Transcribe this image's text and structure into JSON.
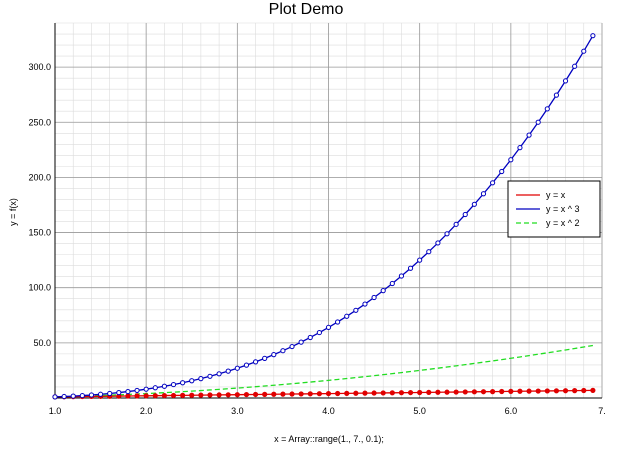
{
  "chart_data": {
    "type": "line",
    "title": "Plot Demo",
    "xlabel": "x = Array::range(1., 7., 0.1);",
    "ylabel": "y = f(x)",
    "xlim": [
      1.0,
      7.0
    ],
    "ylim": [
      0,
      340
    ],
    "x_ticks": [
      1,
      2,
      3,
      4,
      5,
      6,
      7
    ],
    "x_tick_labels": [
      "1.0",
      "2.0",
      "3.0",
      "4.0",
      "5.0",
      "6.0",
      "7."
    ],
    "y_ticks": [
      50,
      100,
      150,
      200,
      250,
      300
    ],
    "y_tick_labels": [
      "50.0",
      "100.0",
      "150.0",
      "200.0",
      "250.0",
      "300.0"
    ],
    "grid": true,
    "legend_position": "right",
    "x": [
      1.0,
      1.1,
      1.2,
      1.3,
      1.4,
      1.5,
      1.6,
      1.7,
      1.8,
      1.9,
      2.0,
      2.1,
      2.2,
      2.3,
      2.4,
      2.5,
      2.6,
      2.7,
      2.8,
      2.9,
      3.0,
      3.1,
      3.2,
      3.3,
      3.4,
      3.5,
      3.6,
      3.7,
      3.8,
      3.9,
      4.0,
      4.1,
      4.2,
      4.3,
      4.4,
      4.5,
      4.6,
      4.7,
      4.8,
      4.9,
      5.0,
      5.1,
      5.2,
      5.3,
      5.4,
      5.5,
      5.6,
      5.7,
      5.8,
      5.9,
      6.0,
      6.1,
      6.2,
      6.3,
      6.4,
      6.5,
      6.6,
      6.7,
      6.8,
      6.9
    ],
    "series": [
      {
        "name": "y = x",
        "color": "#e00000",
        "dashed": false,
        "markers": true,
        "values": [
          1.0,
          1.1,
          1.2,
          1.3,
          1.4,
          1.5,
          1.6,
          1.7,
          1.8,
          1.9,
          2.0,
          2.1,
          2.2,
          2.3,
          2.4,
          2.5,
          2.6,
          2.7,
          2.8,
          2.9,
          3.0,
          3.1,
          3.2,
          3.3,
          3.4,
          3.5,
          3.6,
          3.7,
          3.8,
          3.9,
          4.0,
          4.1,
          4.2,
          4.3,
          4.4,
          4.5,
          4.6,
          4.7,
          4.8,
          4.9,
          5.0,
          5.1,
          5.2,
          5.3,
          5.4,
          5.5,
          5.6,
          5.7,
          5.8,
          5.9,
          6.0,
          6.1,
          6.2,
          6.3,
          6.4,
          6.5,
          6.6,
          6.7,
          6.8,
          6.9
        ]
      },
      {
        "name": "y = x ^ 3",
        "color": "#0000c0",
        "dashed": false,
        "markers": true,
        "values": [
          1.0,
          1.331,
          1.728,
          2.197,
          2.744,
          3.375,
          4.096,
          4.913,
          5.832,
          6.859,
          8.0,
          9.261,
          10.648,
          12.167,
          13.824,
          15.625,
          17.576,
          19.683,
          21.952,
          24.389,
          27.0,
          29.791,
          32.768,
          35.937,
          39.304,
          42.875,
          46.656,
          50.653,
          54.872,
          59.319,
          64.0,
          68.921,
          74.088,
          79.507,
          85.184,
          91.125,
          97.336,
          103.823,
          110.592,
          117.649,
          125.0,
          132.651,
          140.608,
          148.877,
          157.464,
          166.375,
          175.616,
          185.193,
          195.112,
          205.379,
          216.0,
          226.981,
          238.328,
          250.047,
          262.144,
          274.625,
          287.496,
          300.763,
          314.432,
          328.509
        ]
      },
      {
        "name": "y = x ^ 2",
        "color": "#22dd22",
        "dashed": true,
        "markers": false,
        "values": [
          1.0,
          1.21,
          1.44,
          1.69,
          1.96,
          2.25,
          2.56,
          2.89,
          3.24,
          3.61,
          4.0,
          4.41,
          4.84,
          5.29,
          5.76,
          6.25,
          6.76,
          7.29,
          7.84,
          8.41,
          9.0,
          9.61,
          10.24,
          10.89,
          11.56,
          12.25,
          12.96,
          13.69,
          14.44,
          15.21,
          16.0,
          16.81,
          17.64,
          18.49,
          19.36,
          20.25,
          21.16,
          22.09,
          23.04,
          24.01,
          25.0,
          26.01,
          27.04,
          28.09,
          29.16,
          30.25,
          31.36,
          32.49,
          33.64,
          34.81,
          36.0,
          37.21,
          38.44,
          39.69,
          40.96,
          42.25,
          43.56,
          44.89,
          46.24,
          47.61
        ]
      }
    ]
  }
}
